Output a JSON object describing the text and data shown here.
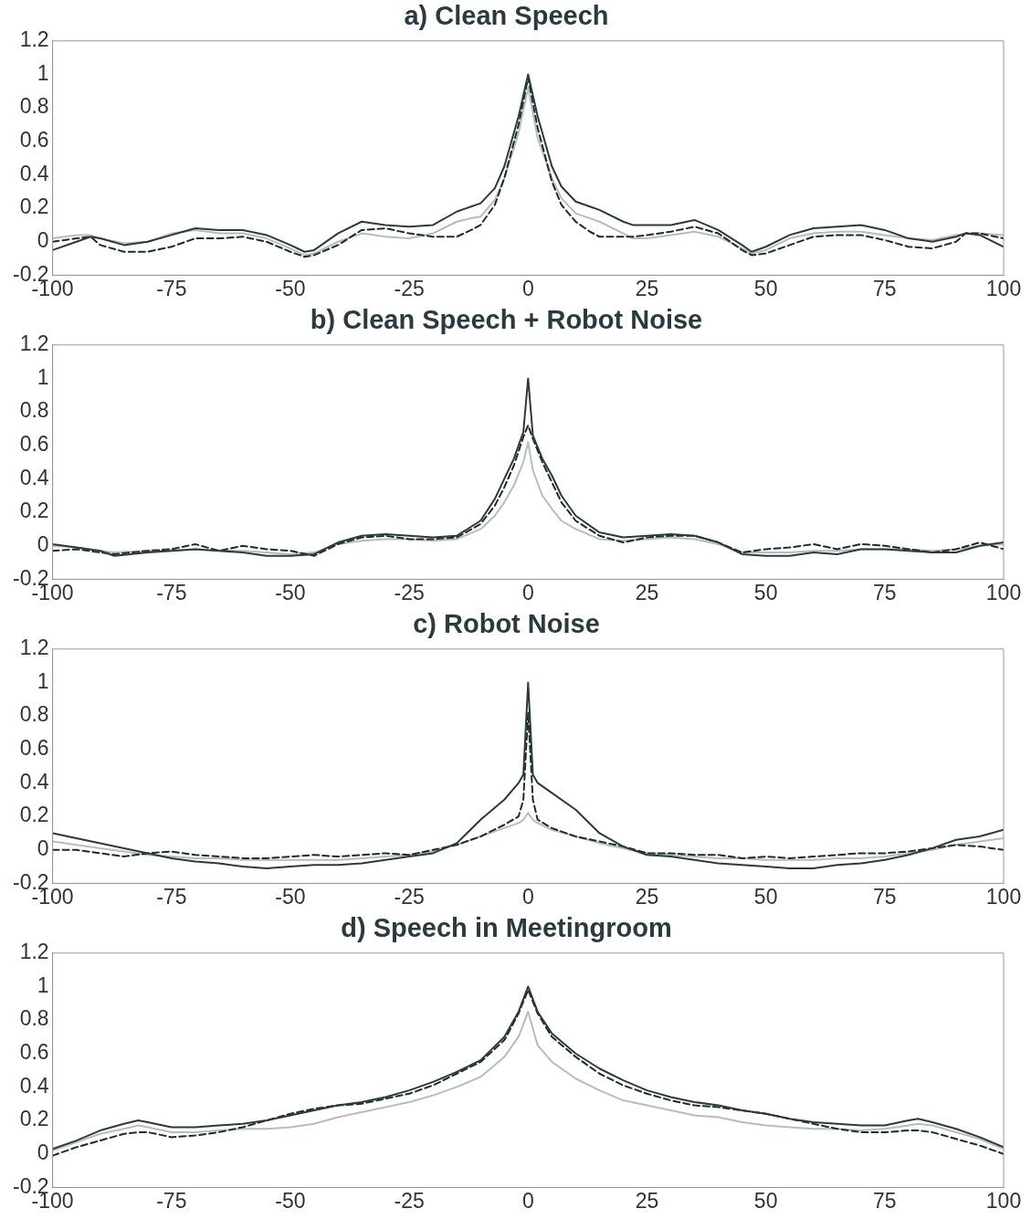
{
  "chart_data": [
    {
      "type": "line",
      "title": "a) Clean Speech",
      "xlim": [
        -100,
        100
      ],
      "xticks": [
        -100,
        -75,
        -50,
        -25,
        0,
        25,
        50,
        75,
        100
      ],
      "ylim": [
        -0.2,
        1.2
      ],
      "yticks": [
        -0.2,
        0,
        0.2,
        0.4,
        0.6,
        0.8,
        1,
        1.2
      ],
      "grid": false,
      "legend": false,
      "marker": "none",
      "x": [
        -100,
        -95,
        -92,
        -90,
        -85,
        -80,
        -75,
        -70,
        -65,
        -60,
        -55,
        -50,
        -47,
        -45,
        -40,
        -35,
        -30,
        -25,
        -20,
        -15,
        -12,
        -10,
        -7,
        -5,
        -2,
        0,
        2,
        5,
        7,
        10,
        13,
        15,
        20,
        22,
        25,
        30,
        35,
        40,
        45,
        47,
        50,
        55,
        60,
        65,
        70,
        75,
        80,
        85,
        90,
        92,
        95,
        100
      ],
      "series": [
        {
          "color": "#2b3a3f",
          "line_style": "solid",
          "values": [
            -0.05,
            0.0,
            0.03,
            0.02,
            -0.02,
            0.0,
            0.04,
            0.08,
            0.07,
            0.07,
            0.04,
            -0.02,
            -0.06,
            -0.05,
            0.05,
            0.12,
            0.1,
            0.09,
            0.1,
            0.18,
            0.21,
            0.23,
            0.32,
            0.45,
            0.75,
            1.0,
            0.75,
            0.45,
            0.33,
            0.24,
            0.21,
            0.19,
            0.12,
            0.1,
            0.1,
            0.1,
            0.13,
            0.07,
            -0.02,
            -0.06,
            -0.03,
            0.04,
            0.08,
            0.09,
            0.1,
            0.07,
            0.02,
            0.0,
            0.03,
            0.05,
            0.04,
            -0.03
          ]
        },
        {
          "color": "#1f2a2e",
          "line_style": "dashed",
          "values": [
            0.0,
            0.02,
            0.03,
            -0.02,
            -0.06,
            -0.06,
            -0.03,
            0.02,
            0.02,
            0.03,
            0.0,
            -0.06,
            -0.09,
            -0.08,
            -0.02,
            0.07,
            0.08,
            0.05,
            0.03,
            0.03,
            0.07,
            0.1,
            0.22,
            0.38,
            0.7,
            0.98,
            0.68,
            0.36,
            0.22,
            0.12,
            0.06,
            0.03,
            0.03,
            0.03,
            0.04,
            0.06,
            0.09,
            0.05,
            -0.05,
            -0.08,
            -0.07,
            -0.02,
            0.03,
            0.04,
            0.04,
            0.01,
            -0.03,
            -0.04,
            0.0,
            0.05,
            0.05,
            0.02
          ]
        },
        {
          "color": "#b8bcbc",
          "line_style": "solid",
          "values": [
            0.02,
            0.04,
            0.04,
            0.02,
            -0.01,
            0.0,
            0.05,
            0.07,
            0.05,
            0.05,
            0.02,
            -0.04,
            -0.08,
            -0.07,
            0.0,
            0.05,
            0.03,
            0.02,
            0.05,
            0.12,
            0.14,
            0.15,
            0.25,
            0.38,
            0.65,
            0.92,
            0.62,
            0.38,
            0.26,
            0.17,
            0.14,
            0.12,
            0.05,
            0.02,
            0.02,
            0.04,
            0.06,
            0.03,
            -0.04,
            -0.07,
            -0.05,
            0.02,
            0.05,
            0.06,
            0.06,
            0.04,
            0.02,
            0.01,
            0.04,
            0.05,
            0.05,
            0.04
          ]
        }
      ]
    },
    {
      "type": "line",
      "title": "b) Clean Speech + Robot Noise",
      "xlim": [
        -100,
        100
      ],
      "xticks": [
        -100,
        -75,
        -50,
        -25,
        0,
        25,
        50,
        75,
        100
      ],
      "ylim": [
        -0.2,
        1.2
      ],
      "yticks": [
        -0.2,
        0,
        0.2,
        0.4,
        0.6,
        0.8,
        1,
        1.2
      ],
      "grid": false,
      "legend": false,
      "marker": "none",
      "x": [
        -100,
        -95,
        -90,
        -87,
        -80,
        -75,
        -70,
        -65,
        -60,
        -55,
        -50,
        -45,
        -40,
        -35,
        -30,
        -25,
        -20,
        -15,
        -10,
        -7,
        -5,
        -3,
        -1,
        0,
        1,
        3,
        5,
        7,
        10,
        15,
        20,
        25,
        30,
        35,
        40,
        45,
        50,
        55,
        60,
        65,
        70,
        75,
        80,
        85,
        90,
        95,
        100
      ],
      "series": [
        {
          "color": "#2b3a3f",
          "line_style": "solid",
          "values": [
            0.01,
            -0.01,
            -0.03,
            -0.06,
            -0.04,
            -0.03,
            -0.02,
            -0.03,
            -0.04,
            -0.06,
            -0.06,
            -0.05,
            0.02,
            0.06,
            0.07,
            0.06,
            0.05,
            0.06,
            0.15,
            0.28,
            0.4,
            0.52,
            0.68,
            1.0,
            0.66,
            0.52,
            0.42,
            0.3,
            0.18,
            0.08,
            0.05,
            0.06,
            0.07,
            0.06,
            0.02,
            -0.05,
            -0.06,
            -0.06,
            -0.04,
            -0.05,
            -0.02,
            -0.02,
            -0.03,
            -0.04,
            -0.04,
            0.0,
            0.02
          ]
        },
        {
          "color": "#1f2a2e",
          "line_style": "dashed",
          "values": [
            -0.03,
            -0.02,
            -0.04,
            -0.05,
            -0.03,
            -0.02,
            0.01,
            -0.03,
            0.0,
            -0.02,
            -0.03,
            -0.06,
            0.01,
            0.05,
            0.06,
            0.04,
            0.04,
            0.05,
            0.13,
            0.24,
            0.35,
            0.48,
            0.65,
            0.72,
            0.64,
            0.5,
            0.38,
            0.26,
            0.15,
            0.06,
            0.02,
            0.05,
            0.06,
            0.06,
            0.02,
            -0.04,
            -0.02,
            -0.01,
            0.01,
            -0.02,
            0.01,
            0.0,
            -0.02,
            -0.04,
            -0.02,
            0.02,
            -0.02
          ]
        },
        {
          "color": "#b8bcbc",
          "line_style": "solid",
          "values": [
            0.0,
            -0.01,
            -0.03,
            -0.04,
            -0.03,
            -0.03,
            -0.02,
            -0.03,
            -0.03,
            -0.04,
            -0.05,
            -0.04,
            0.01,
            0.03,
            0.04,
            0.04,
            0.03,
            0.04,
            0.1,
            0.18,
            0.26,
            0.36,
            0.5,
            0.62,
            0.45,
            0.3,
            0.22,
            0.15,
            0.1,
            0.04,
            0.03,
            0.04,
            0.05,
            0.04,
            0.01,
            -0.04,
            -0.04,
            -0.04,
            -0.03,
            -0.03,
            -0.02,
            -0.02,
            -0.02,
            -0.03,
            -0.02,
            0.0,
            0.01
          ]
        }
      ]
    },
    {
      "type": "line",
      "title": "c) Robot Noise",
      "xlim": [
        -100,
        100
      ],
      "xticks": [
        -100,
        -75,
        -50,
        -25,
        0,
        25,
        50,
        75,
        100
      ],
      "ylim": [
        -0.2,
        1.2
      ],
      "yticks": [
        -0.2,
        0,
        0.2,
        0.4,
        0.6,
        0.8,
        1,
        1.2
      ],
      "grid": false,
      "legend": false,
      "marker": "none",
      "x": [
        -100,
        -95,
        -90,
        -85,
        -80,
        -75,
        -70,
        -65,
        -60,
        -55,
        -50,
        -45,
        -40,
        -35,
        -30,
        -25,
        -20,
        -15,
        -10,
        -5,
        -2,
        -1,
        0,
        1,
        2,
        5,
        10,
        15,
        20,
        25,
        30,
        35,
        40,
        45,
        50,
        55,
        60,
        65,
        70,
        75,
        80,
        85,
        90,
        95,
        100
      ],
      "series": [
        {
          "color": "#2b3a3f",
          "line_style": "solid",
          "values": [
            0.1,
            0.07,
            0.04,
            0.01,
            -0.02,
            -0.05,
            -0.07,
            -0.08,
            -0.1,
            -0.11,
            -0.1,
            -0.09,
            -0.09,
            -0.08,
            -0.06,
            -0.04,
            -0.02,
            0.04,
            0.18,
            0.3,
            0.4,
            0.45,
            1.0,
            0.45,
            0.4,
            0.34,
            0.24,
            0.1,
            0.02,
            -0.03,
            -0.04,
            -0.06,
            -0.08,
            -0.09,
            -0.1,
            -0.11,
            -0.11,
            -0.09,
            -0.08,
            -0.06,
            -0.03,
            0.01,
            0.06,
            0.08,
            0.12
          ]
        },
        {
          "color": "#1f2a2e",
          "line_style": "dashed",
          "values": [
            0.0,
            0.0,
            -0.02,
            -0.04,
            -0.02,
            -0.01,
            -0.03,
            -0.04,
            -0.05,
            -0.05,
            -0.04,
            -0.03,
            -0.04,
            -0.03,
            -0.02,
            -0.03,
            0.0,
            0.03,
            0.08,
            0.15,
            0.2,
            0.3,
            0.82,
            0.3,
            0.18,
            0.13,
            0.08,
            0.05,
            0.02,
            -0.02,
            -0.02,
            -0.03,
            -0.03,
            -0.05,
            -0.04,
            -0.05,
            -0.04,
            -0.03,
            -0.02,
            -0.02,
            -0.01,
            0.01,
            0.03,
            0.02,
            0.0
          ]
        },
        {
          "color": "#b8bcbc",
          "line_style": "solid",
          "values": [
            0.05,
            0.03,
            0.01,
            -0.01,
            -0.03,
            -0.04,
            -0.05,
            -0.05,
            -0.06,
            -0.06,
            -0.06,
            -0.06,
            -0.06,
            -0.05,
            -0.04,
            -0.03,
            -0.01,
            0.03,
            0.08,
            0.13,
            0.16,
            0.18,
            0.22,
            0.18,
            0.16,
            0.12,
            0.08,
            0.04,
            0.01,
            -0.02,
            -0.03,
            -0.04,
            -0.05,
            -0.05,
            -0.06,
            -0.06,
            -0.06,
            -0.05,
            -0.05,
            -0.04,
            -0.02,
            0.0,
            0.03,
            0.05,
            0.07
          ]
        }
      ]
    },
    {
      "type": "line",
      "title": "d) Speech in Meetingroom",
      "xlim": [
        -100,
        100
      ],
      "xticks": [
        -100,
        -75,
        -50,
        -25,
        0,
        25,
        50,
        75,
        100
      ],
      "ylim": [
        -0.2,
        1.2
      ],
      "yticks": [
        -0.2,
        0,
        0.2,
        0.4,
        0.6,
        0.8,
        1,
        1.2
      ],
      "grid": false,
      "legend": false,
      "marker": "none",
      "x": [
        -100,
        -95,
        -90,
        -85,
        -82,
        -80,
        -75,
        -70,
        -65,
        -60,
        -55,
        -50,
        -45,
        -40,
        -35,
        -30,
        -25,
        -20,
        -15,
        -10,
        -5,
        -2,
        0,
        2,
        5,
        10,
        15,
        20,
        25,
        30,
        35,
        40,
        45,
        50,
        55,
        60,
        65,
        70,
        75,
        80,
        82,
        85,
        90,
        95,
        100
      ],
      "series": [
        {
          "color": "#2b3a3f",
          "line_style": "solid",
          "values": [
            0.03,
            0.08,
            0.14,
            0.18,
            0.2,
            0.19,
            0.16,
            0.16,
            0.17,
            0.18,
            0.2,
            0.23,
            0.26,
            0.29,
            0.31,
            0.34,
            0.38,
            0.43,
            0.49,
            0.56,
            0.7,
            0.85,
            1.0,
            0.85,
            0.72,
            0.6,
            0.51,
            0.44,
            0.38,
            0.34,
            0.31,
            0.29,
            0.26,
            0.24,
            0.21,
            0.19,
            0.18,
            0.17,
            0.17,
            0.2,
            0.21,
            0.19,
            0.15,
            0.1,
            0.04
          ]
        },
        {
          "color": "#1f2a2e",
          "line_style": "dashed",
          "values": [
            -0.01,
            0.04,
            0.08,
            0.12,
            0.13,
            0.13,
            0.1,
            0.11,
            0.13,
            0.16,
            0.2,
            0.24,
            0.27,
            0.29,
            0.3,
            0.33,
            0.36,
            0.41,
            0.48,
            0.55,
            0.68,
            0.84,
            0.98,
            0.84,
            0.7,
            0.58,
            0.48,
            0.41,
            0.36,
            0.32,
            0.29,
            0.28,
            0.26,
            0.24,
            0.21,
            0.18,
            0.15,
            0.13,
            0.13,
            0.14,
            0.14,
            0.13,
            0.09,
            0.05,
            0.0
          ]
        },
        {
          "color": "#b8bcbc",
          "line_style": "solid",
          "values": [
            0.02,
            0.07,
            0.12,
            0.15,
            0.17,
            0.16,
            0.13,
            0.13,
            0.14,
            0.15,
            0.15,
            0.16,
            0.18,
            0.22,
            0.25,
            0.28,
            0.31,
            0.35,
            0.4,
            0.46,
            0.58,
            0.7,
            0.85,
            0.65,
            0.55,
            0.45,
            0.38,
            0.32,
            0.29,
            0.26,
            0.23,
            0.22,
            0.19,
            0.17,
            0.16,
            0.15,
            0.15,
            0.14,
            0.15,
            0.17,
            0.18,
            0.17,
            0.13,
            0.09,
            0.03
          ]
        }
      ]
    }
  ]
}
